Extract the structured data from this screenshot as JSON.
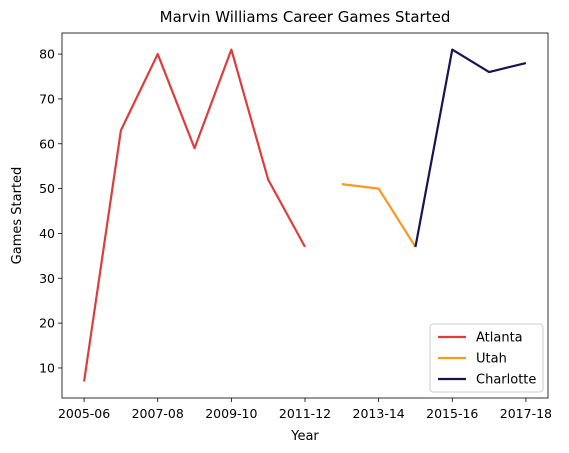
{
  "chart_data": {
    "type": "line",
    "title": "Marvin Williams Career Games Started",
    "xlabel": "Year",
    "ylabel": "Games Started",
    "x_tick_labels": [
      "2005-06",
      "2007-08",
      "2009-10",
      "2011-12",
      "2013-14",
      "2015-16",
      "2017-18"
    ],
    "y_ticks": [
      10,
      20,
      30,
      40,
      50,
      60,
      70,
      80
    ],
    "ylim": [
      3.3,
      84.7
    ],
    "grid": false,
    "legend_position": "lower right",
    "series": [
      {
        "name": "Atlanta",
        "color": "#dc3d3d",
        "points": [
          {
            "x": "2005-06",
            "y": 7
          },
          {
            "x": "2006-07",
            "y": 63
          },
          {
            "x": "2007-08",
            "y": 80
          },
          {
            "x": "2008-09",
            "y": 59
          },
          {
            "x": "2009-10",
            "y": 81
          },
          {
            "x": "2010-11",
            "y": 52
          },
          {
            "x": "2011-12",
            "y": 37
          }
        ]
      },
      {
        "name": "Utah",
        "color": "#f59b23",
        "points": [
          {
            "x": "2012-13",
            "y": 51
          },
          {
            "x": "2013-14",
            "y": 50
          },
          {
            "x": "2014-15",
            "y": 37
          }
        ]
      },
      {
        "name": "Charlotte",
        "color": "#1d1150",
        "points": [
          {
            "x": "2014-15",
            "y": 37
          },
          {
            "x": "2015-16",
            "y": 81
          },
          {
            "x": "2016-17",
            "y": 76
          },
          {
            "x": "2017-18",
            "y": 78
          }
        ]
      }
    ]
  }
}
